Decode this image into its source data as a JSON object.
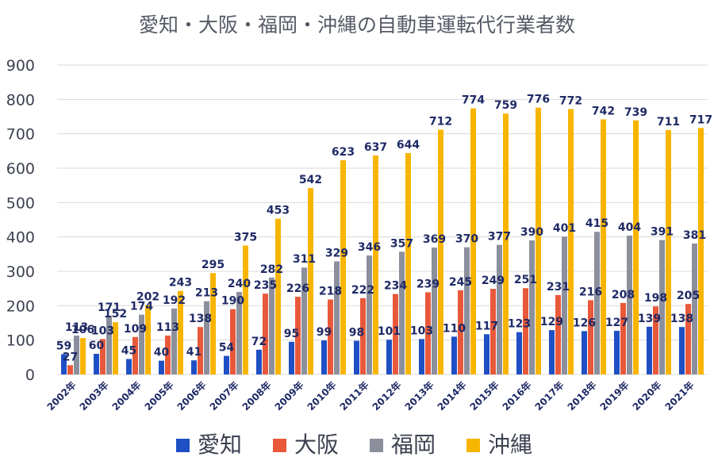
{
  "chart_data": {
    "type": "bar",
    "title": "愛知・大阪・福岡・沖縄の自動車運転代行業者数",
    "xlabel": "",
    "ylabel": "",
    "ylim": [
      0,
      900
    ],
    "yticks": [
      "0",
      "100",
      "200",
      "300",
      "400",
      "500",
      "600",
      "700",
      "800",
      "900"
    ],
    "grid": true,
    "legend_position": "bottom",
    "categories": [
      "2002年",
      "2003年",
      "2004年",
      "2005年",
      "2006年",
      "2007年",
      "2008年",
      "2009年",
      "2010年",
      "2011年",
      "2012年",
      "2013年",
      "2014年",
      "2015年",
      "2016年",
      "2017年",
      "2018年",
      "2019年",
      "2020年",
      "2021年"
    ],
    "series": [
      {
        "name": "愛知",
        "color": "#1f4fc4",
        "values": [
          59,
          60,
          45,
          40,
          41,
          54,
          72,
          95,
          99,
          98,
          101,
          103,
          110,
          117,
          123,
          129,
          126,
          127,
          139,
          138
        ]
      },
      {
        "name": "大阪",
        "color": "#e8583a",
        "values": [
          27,
          103,
          109,
          113,
          138,
          190,
          235,
          226,
          218,
          222,
          234,
          239,
          245,
          249,
          251,
          231,
          216,
          208,
          198,
          205
        ]
      },
      {
        "name": "福岡",
        "color": "#8c8f9c",
        "values": [
          113,
          171,
          174,
          192,
          213,
          240,
          282,
          311,
          329,
          346,
          357,
          369,
          370,
          377,
          390,
          401,
          415,
          404,
          391,
          381
        ]
      },
      {
        "name": "沖縄",
        "color": "#f7b500",
        "values": [
          106,
          152,
          202,
          243,
          295,
          375,
          453,
          542,
          623,
          637,
          644,
          712,
          774,
          759,
          776,
          772,
          742,
          739,
          711,
          717
        ]
      }
    ]
  }
}
